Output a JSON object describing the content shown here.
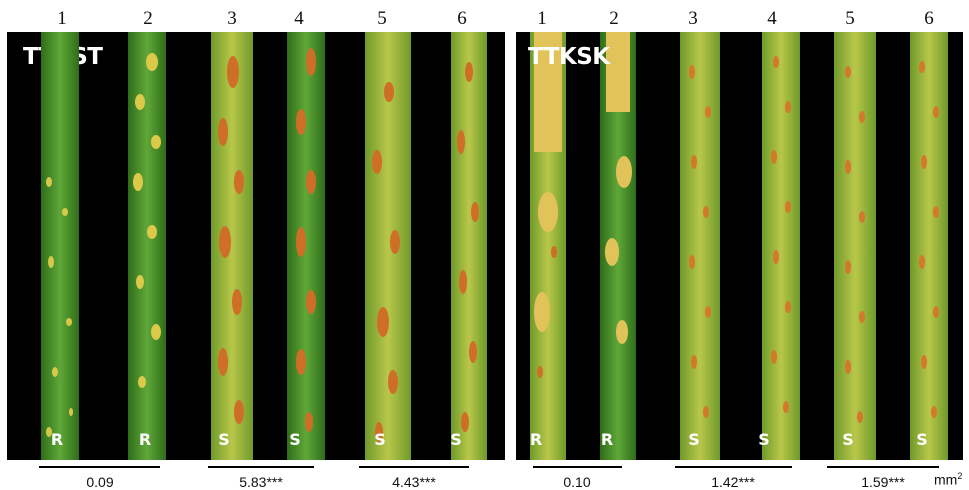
{
  "numbers": [
    "1",
    "2",
    "3",
    "4",
    "5",
    "6"
  ],
  "panels": [
    {
      "label": "TTKST",
      "ratings": [
        "R",
        "R",
        "S",
        "S",
        "S",
        "S"
      ]
    },
    {
      "label": "TTKSK",
      "ratings": [
        "R",
        "R",
        "S",
        "S",
        "S",
        "S"
      ]
    }
  ],
  "values": [
    "0.09",
    "5.83***",
    "4.43***",
    "0.10",
    "1.42***",
    "1.59***"
  ],
  "unit": {
    "base": "mm",
    "exp": "2"
  },
  "colors": {
    "background": "#000000",
    "leaf_green": "#4f9a2f",
    "pustule_orange": "#d4782a",
    "chlorosis_yellow": "#d6c94a"
  }
}
